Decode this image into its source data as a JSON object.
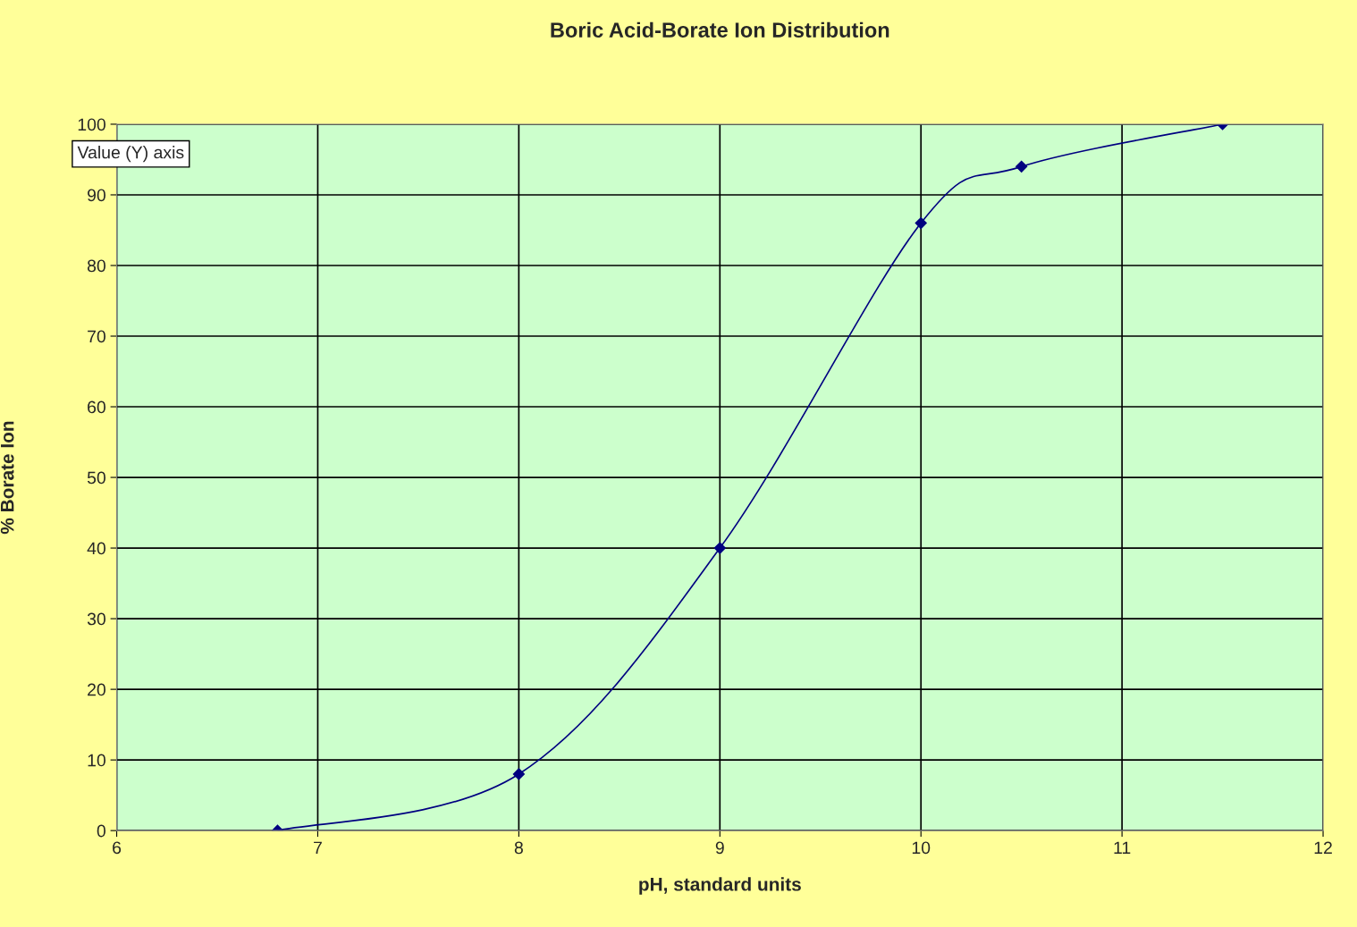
{
  "chart_data": {
    "type": "line",
    "title": "Boric Acid-Borate Ion Distribution",
    "xlabel": "pH, standard units",
    "ylabel": "% Borate Ion",
    "x": [
      6.8,
      8,
      9,
      10,
      10.5,
      11.5
    ],
    "series": [
      {
        "color": "#000080",
        "values": [
          0,
          8,
          40,
          86,
          94,
          100
        ]
      }
    ],
    "xlim": [
      6,
      12
    ],
    "xticks": [
      6,
      7,
      8,
      9,
      10,
      11,
      12
    ],
    "ylim": [
      0,
      100
    ],
    "yticks": [
      0,
      10,
      20,
      30,
      40,
      50,
      60,
      70,
      80,
      90,
      100
    ],
    "grid": true,
    "marker": "diamond",
    "line_style": "solid",
    "legend": false,
    "annotations": [
      "Value (Y) axis"
    ]
  }
}
